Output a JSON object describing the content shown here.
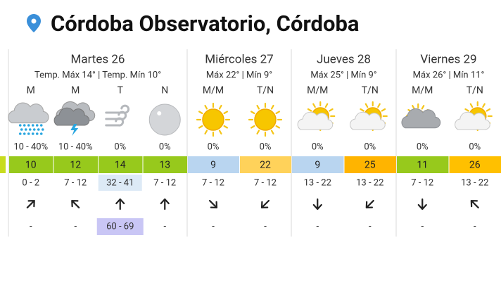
{
  "header": {
    "title": "Córdoba Observatorio, Córdoba"
  },
  "days": [
    {
      "name": "Martes 26",
      "temps": "Temp. Máx 14° | Temp. Mín 10°",
      "periods": [
        {
          "label": "M",
          "rain": "10 - 40%",
          "temp": 10,
          "wind": "0 - 2",
          "gust": "-"
        },
        {
          "label": "M",
          "rain": "10 - 40%",
          "temp": 12,
          "wind": "7 - 12",
          "gust": "-"
        },
        {
          "label": "T",
          "rain": "0%",
          "temp": 14,
          "wind": "32 - 41",
          "gust": "60 - 69"
        },
        {
          "label": "N",
          "rain": "0%",
          "temp": 13,
          "wind": "7 - 12",
          "gust": "-"
        }
      ]
    },
    {
      "name": "Miércoles 27",
      "temps": "Máx 22° | Mín 9°",
      "periods": [
        {
          "label": "M/M",
          "rain": "0%",
          "temp": 9,
          "wind": "7 - 12",
          "gust": "-"
        },
        {
          "label": "T/N",
          "rain": "0%",
          "temp": 22,
          "wind": "7 - 12",
          "gust": "-"
        }
      ]
    },
    {
      "name": "Jueves 28",
      "temps": "Máx 25° | Mín 9°",
      "periods": [
        {
          "label": "M/M",
          "rain": "0%",
          "temp": 9,
          "wind": "13 - 22",
          "gust": "-"
        },
        {
          "label": "T/N",
          "rain": "0%",
          "temp": 25,
          "wind": "13 - 22",
          "gust": "-"
        }
      ]
    },
    {
      "name": "Viernes 29",
      "temps": "Máx 26° | Mín 11°",
      "periods": [
        {
          "label": "M/M",
          "rain": "0%",
          "temp": 11,
          "wind": "7 - 12",
          "gust": "-"
        },
        {
          "label": "T/N",
          "rain": "0%",
          "temp": 26,
          "wind": "13 - 22",
          "gust": "-"
        }
      ]
    }
  ]
}
